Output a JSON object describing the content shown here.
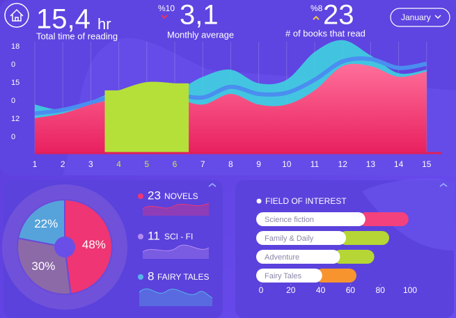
{
  "header": {
    "stats": [
      {
        "value": "15,4",
        "unit": "hr",
        "label": "Total time of reading"
      },
      {
        "change": "%10",
        "value": "3,1",
        "label": "Monthly average"
      },
      {
        "change": "%8",
        "value": 23,
        "label": "# of books that read"
      }
    ],
    "month": "January"
  },
  "chart_data": [
    {
      "type": "area",
      "y_labels": [
        18,
        0,
        15,
        0,
        12,
        0
      ],
      "categories": [
        1,
        2,
        3,
        4,
        5,
        6,
        7,
        8,
        9,
        10,
        11,
        12,
        13,
        14,
        15
      ],
      "ylim": [
        0,
        20
      ],
      "series": [
        {
          "color": "#3fd3e0",
          "values": [
            8.2,
            7.3,
            8.8,
            10.6,
            11.2,
            10.6,
            12.9,
            14.1,
            11.8,
            12.4,
            17.1,
            19.1,
            16.5,
            13.5,
            14.1
          ]
        },
        {
          "color": "#4a8ef0",
          "values": [
            6.7,
            7.3,
            8.5,
            10,
            10.8,
            10,
            9.4,
            11.2,
            10,
            10.2,
            12.4,
            15.5,
            15.9,
            14.4,
            15.1
          ]
        },
        {
          "color": "#f2417c",
          "values": [
            5.9,
            6.7,
            8.2,
            9.4,
            10.8,
            9.4,
            8.2,
            10,
            8.2,
            8.2,
            10.6,
            14.7,
            14.7,
            12.9,
            13.8
          ]
        },
        {
          "color": "#b5e03a",
          "values": [
            null,
            null,
            null,
            10.6,
            12,
            11.8,
            null,
            null,
            null,
            null,
            null,
            null,
            null,
            null,
            null
          ]
        }
      ]
    },
    {
      "type": "pie",
      "values": [
        48,
        30,
        22
      ],
      "value_labels": [
        "48%",
        "30%",
        "22%"
      ],
      "colors": [
        "#ef3573",
        "#8c6aa8",
        "#56a3db"
      ],
      "legend": [
        {
          "count": 23,
          "label": "NOVELS",
          "color": "#ef3573"
        },
        {
          "count": 11,
          "label": "SCI - FI",
          "color": "#b58cf0"
        },
        {
          "count": 8,
          "label": "FAIRY TALES",
          "color": "#56b4e8"
        }
      ]
    },
    {
      "type": "bar",
      "title": "FIELD OF INTEREST",
      "categories": [
        "Science fiction",
        "Family & Daily",
        "Adventure",
        "Fairy Tales"
      ],
      "series": [
        {
          "color": "#ffffff",
          "values": [
            70,
            57,
            53,
            41
          ]
        },
        {
          "colors": [
            "#f2417c",
            "#b5d634",
            "#b5d634",
            "#f7942e"
          ],
          "values": [
            29,
            29,
            23,
            23
          ]
        }
      ],
      "xlim": [
        0,
        100
      ],
      "xticks": [
        0,
        20,
        40,
        60,
        80,
        100
      ]
    }
  ]
}
